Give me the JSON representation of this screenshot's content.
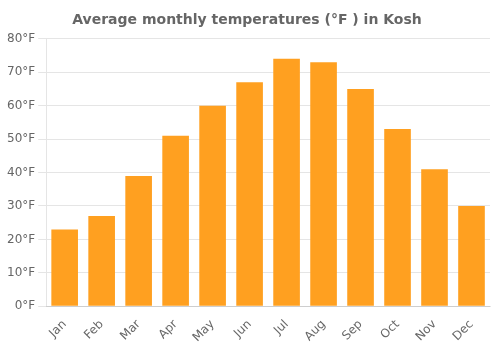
{
  "chart_data": {
    "type": "bar",
    "title": "Average monthly temperatures (°F ) in Kosh",
    "categories": [
      "Jan",
      "Feb",
      "Mar",
      "Apr",
      "May",
      "Jun",
      "Jul",
      "Aug",
      "Sep",
      "Oct",
      "Nov",
      "Dec"
    ],
    "values": [
      23,
      27,
      39,
      51,
      60,
      67,
      74,
      73,
      65,
      53,
      41,
      30
    ],
    "color": "#FFA020",
    "ylim": [
      0,
      80
    ],
    "yticks": [
      {
        "value": 0,
        "label": "0°F"
      },
      {
        "value": 10,
        "label": "10°F"
      },
      {
        "value": 20,
        "label": "20°F"
      },
      {
        "value": 30,
        "label": "30°F"
      },
      {
        "value": 40,
        "label": "40°F"
      },
      {
        "value": 50,
        "label": "50°F"
      },
      {
        "value": 60,
        "label": "60°F"
      },
      {
        "value": 70,
        "label": "70°F"
      },
      {
        "value": 80,
        "label": "80°F"
      }
    ],
    "grid": true
  }
}
